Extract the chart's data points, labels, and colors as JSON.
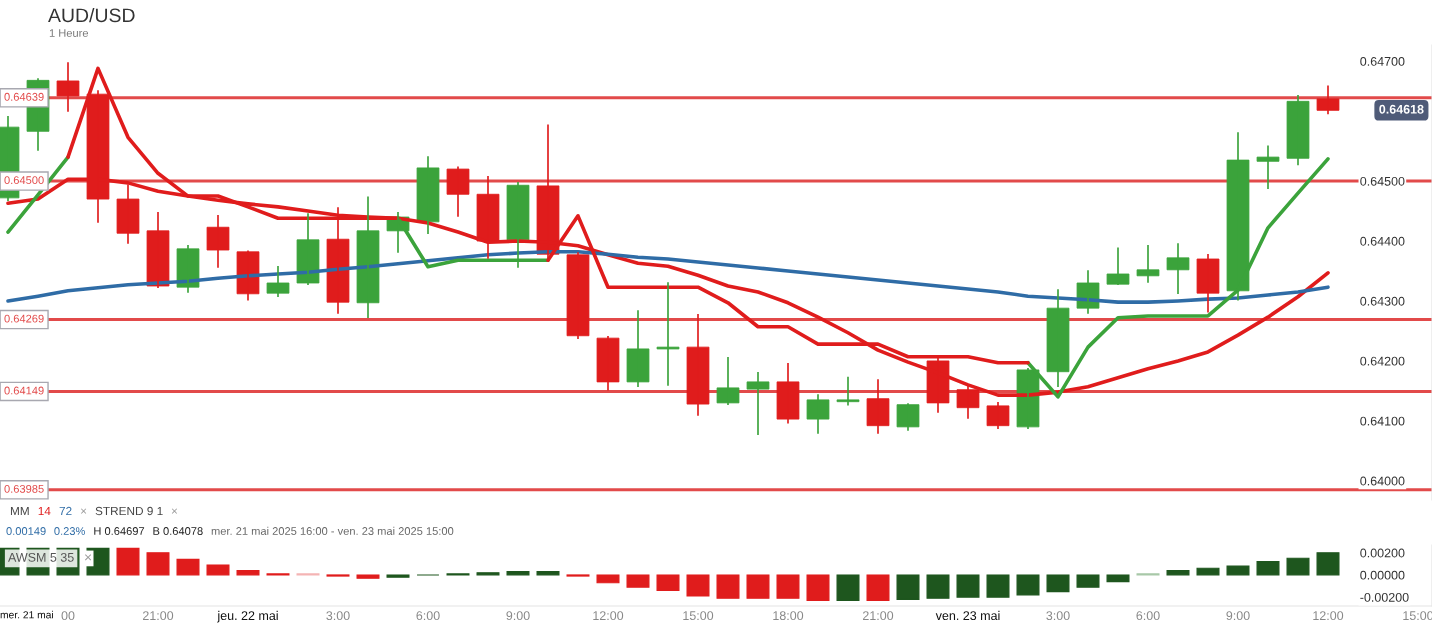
{
  "chart_data": [
    {
      "type": "candlestick",
      "title": "AUD/USD",
      "subtitle": "1 Heure",
      "x": [
        "2025-05-21T16:00",
        "2025-05-21T17:00",
        "2025-05-21T18:00",
        "2025-05-21T19:00",
        "2025-05-21T20:00",
        "2025-05-21T21:00",
        "2025-05-21T22:00",
        "2025-05-21T23:00",
        "2025-05-22T00:00",
        "2025-05-22T01:00",
        "2025-05-22T02:00",
        "2025-05-22T03:00",
        "2025-05-22T04:00",
        "2025-05-22T05:00",
        "2025-05-22T06:00",
        "2025-05-22T07:00",
        "2025-05-22T08:00",
        "2025-05-22T09:00",
        "2025-05-22T10:00",
        "2025-05-22T11:00",
        "2025-05-22T12:00",
        "2025-05-22T13:00",
        "2025-05-22T14:00",
        "2025-05-22T15:00",
        "2025-05-22T16:00",
        "2025-05-22T17:00",
        "2025-05-22T18:00",
        "2025-05-22T19:00",
        "2025-05-22T20:00",
        "2025-05-22T21:00",
        "2025-05-22T22:00",
        "2025-05-22T23:00",
        "2025-05-23T00:00",
        "2025-05-23T01:00",
        "2025-05-23T02:00",
        "2025-05-23T03:00",
        "2025-05-23T04:00",
        "2025-05-23T05:00",
        "2025-05-23T06:00",
        "2025-05-23T07:00",
        "2025-05-23T08:00",
        "2025-05-23T09:00",
        "2025-05-23T10:00",
        "2025-05-23T11:00",
        "2025-05-23T12:00"
      ],
      "ohlc": [
        [
          0.64472,
          0.64607,
          0.64468,
          0.6459
        ],
        [
          0.64583,
          0.6467,
          0.64552,
          0.64668
        ],
        [
          0.64667,
          0.64697,
          0.64617,
          0.64642
        ],
        [
          0.64645,
          0.6465,
          0.64432,
          0.6447
        ],
        [
          0.6447,
          0.64493,
          0.64397,
          0.64413
        ],
        [
          0.64417,
          0.64447,
          0.64323,
          0.64325
        ],
        [
          0.64323,
          0.64392,
          0.64315,
          0.64387
        ],
        [
          0.64423,
          0.64442,
          0.64357,
          0.64385
        ],
        [
          0.64382,
          0.64383,
          0.64302,
          0.64312
        ],
        [
          0.64313,
          0.64357,
          0.64308,
          0.6433
        ],
        [
          0.6433,
          0.64445,
          0.64328,
          0.64402
        ],
        [
          0.64403,
          0.64455,
          0.6428,
          0.64298
        ],
        [
          0.64297,
          0.64473,
          0.64273,
          0.64417
        ],
        [
          0.64417,
          0.64447,
          0.64382,
          0.6444
        ],
        [
          0.64432,
          0.6454,
          0.64413,
          0.64522
        ],
        [
          0.6452,
          0.64523,
          0.64442,
          0.64478
        ],
        [
          0.64478,
          0.64507,
          0.64372,
          0.644
        ],
        [
          0.64402,
          0.64497,
          0.64357,
          0.64493
        ],
        [
          0.64492,
          0.64593,
          0.64372,
          0.64378
        ],
        [
          0.64377,
          0.6438,
          0.64238,
          0.64242
        ],
        [
          0.64238,
          0.6424,
          0.64152,
          0.64165
        ],
        [
          0.64165,
          0.64283,
          0.64158,
          0.6422
        ],
        [
          0.6422,
          0.6433,
          0.6416,
          0.64223
        ],
        [
          0.64223,
          0.64277,
          0.6411,
          0.64128
        ],
        [
          0.6413,
          0.64205,
          0.64128,
          0.64155
        ],
        [
          0.64153,
          0.6418,
          0.64078,
          0.64165
        ],
        [
          0.64165,
          0.64195,
          0.64097,
          0.64103
        ],
        [
          0.64103,
          0.64143,
          0.6408,
          0.64135
        ],
        [
          0.64132,
          0.64172,
          0.64127,
          0.64135
        ],
        [
          0.64137,
          0.64168,
          0.6408,
          0.64092
        ],
        [
          0.6409,
          0.64128,
          0.64085,
          0.64127
        ],
        [
          0.642,
          0.64205,
          0.64115,
          0.6413
        ],
        [
          0.64152,
          0.6416,
          0.64105,
          0.64122
        ],
        [
          0.64125,
          0.6413,
          0.64088,
          0.64092
        ],
        [
          0.6409,
          0.64187,
          0.64088,
          0.64185
        ],
        [
          0.64182,
          0.64318,
          0.64158,
          0.64288
        ],
        [
          0.64288,
          0.6435,
          0.6428,
          0.6433
        ],
        [
          0.64328,
          0.64388,
          0.64328,
          0.64345
        ],
        [
          0.64342,
          0.64392,
          0.64332,
          0.64352
        ],
        [
          0.64352,
          0.64395,
          0.64313,
          0.64372
        ],
        [
          0.6437,
          0.64377,
          0.64282,
          0.64313
        ],
        [
          0.64317,
          0.6458,
          0.64302,
          0.64535
        ],
        [
          0.64533,
          0.64558,
          0.64488,
          0.6454
        ],
        [
          0.64538,
          0.64642,
          0.64528,
          0.64633
        ],
        [
          0.64637,
          0.64658,
          0.64613,
          0.64618
        ]
      ],
      "colors": [
        "#3ba33b",
        "#3ba33b",
        "#e01c1c",
        "#e01c1c",
        "#e01c1c",
        "#e01c1c",
        "#3ba33b",
        "#e01c1c",
        "#e01c1c",
        "#3ba33b",
        "#3ba33b",
        "#e01c1c",
        "#3ba33b",
        "#3ba33b",
        "#3ba33b",
        "#e01c1c",
        "#e01c1c",
        "#3ba33b",
        "#e01c1c",
        "#e01c1c",
        "#e01c1c",
        "#3ba33b",
        "#3ba33b",
        "#e01c1c",
        "#3ba33b",
        "#3ba33b",
        "#e01c1c",
        "#3ba33b",
        "#3ba33b",
        "#e01c1c",
        "#3ba33b",
        "#e01c1c",
        "#e01c1c",
        "#e01c1c",
        "#3ba33b",
        "#3ba33b",
        "#3ba33b",
        "#3ba33b",
        "#3ba33b",
        "#3ba33b",
        "#e01c1c",
        "#3ba33b",
        "#3ba33b",
        "#3ba33b",
        "#e01c1c"
      ],
      "series": [
        {
          "type": "line",
          "name": "14",
          "color": "#e01c1c",
          "values": [
            0.64463,
            0.6447,
            0.64503,
            0.64503,
            0.64497,
            0.64483,
            0.64475,
            0.64468,
            0.64462,
            0.64457,
            0.6445,
            0.64443,
            0.6444,
            0.64438,
            0.6443,
            0.64415,
            0.64398,
            0.644,
            0.64398,
            0.64392,
            0.64377,
            0.64363,
            0.64358,
            0.64343,
            0.64325,
            0.64315,
            0.64297,
            0.64273,
            0.64247,
            0.64218,
            0.64198,
            0.6418,
            0.6416,
            0.64143,
            0.64143,
            0.64148,
            0.64157,
            0.64172,
            0.64187,
            0.642,
            0.64215,
            0.64243,
            0.64273,
            0.64307,
            0.64347
          ]
        },
        {
          "type": "line",
          "name": "72",
          "color": "#2f6ca6",
          "values": [
            0.643,
            0.64308,
            0.64317,
            0.64322,
            0.64327,
            0.6433,
            0.64333,
            0.64338,
            0.64342,
            0.64345,
            0.64348,
            0.64353,
            0.64357,
            0.64362,
            0.64367,
            0.64372,
            0.64377,
            0.6438,
            0.64382,
            0.64382,
            0.64378,
            0.64373,
            0.6437,
            0.64365,
            0.6436,
            0.64355,
            0.6435,
            0.64345,
            0.6434,
            0.64335,
            0.6433,
            0.64325,
            0.6432,
            0.64315,
            0.64308,
            0.64305,
            0.64302,
            0.64298,
            0.64298,
            0.643,
            0.64303,
            0.64305,
            0.6431,
            0.64315,
            0.64323
          ]
        },
        {
          "type": "line",
          "color": "#3ba33b",
          "values": [
            0.64415,
            0.64477,
            0.6454,
            null,
            null,
            null,
            null,
            null,
            null,
            null,
            null,
            null,
            null,
            0.64438,
            0.64357,
            0.64368,
            0.64368,
            0.64368,
            0.64368,
            null,
            null,
            null,
            null,
            null,
            null,
            null,
            null,
            null,
            null,
            null,
            null,
            null,
            null,
            null,
            0.64197,
            0.6414,
            0.64223,
            0.64272,
            0.64275,
            0.64275,
            0.64275,
            0.64318,
            0.64422,
            0.6448,
            0.64537
          ]
        },
        {
          "type": "line",
          "color": "#e01c1c",
          "values": [
            null,
            null,
            0.6454,
            0.64688,
            0.64573,
            0.64513,
            0.64475,
            0.64475,
            0.64457,
            0.64438,
            0.64438,
            0.64438,
            0.64438,
            0.64438,
            null,
            null,
            null,
            null,
            0.64368,
            0.64442,
            0.64323,
            0.64323,
            0.64323,
            0.64323,
            0.64297,
            0.64257,
            0.64257,
            0.64228,
            0.64228,
            0.64228,
            0.64207,
            0.64207,
            0.64207,
            0.64197,
            0.64197,
            null,
            null,
            null,
            null,
            null,
            null,
            null,
            null,
            null,
            null
          ]
        }
      ],
      "ref_lines": [
        {
          "axis": "y",
          "value": 0.64639,
          "label": "0.64639",
          "color": "#e24a4a"
        },
        {
          "axis": "y",
          "value": 0.645,
          "label": "0.64500",
          "color": "#e24a4a"
        },
        {
          "axis": "y",
          "value": 0.64269,
          "label": "0.64269",
          "color": "#e24a4a"
        },
        {
          "axis": "y",
          "value": 0.64149,
          "label": "0.64149",
          "color": "#e24a4a"
        },
        {
          "axis": "y",
          "value": 0.63985,
          "label": "0.63985",
          "color": "#e24a4a"
        }
      ],
      "annotations": [
        "MM",
        "×",
        "STREND 9 1",
        "×",
        "0.00149",
        "0.23%",
        "H 0.64697",
        "B 0.64078",
        "mer. 21 mai 2025 16:00 - ven. 23 mai 2025 15:00",
        "0.64618"
      ],
      "xlim": [
        "2025-05-21T15:44",
        "2025-05-23T15:28"
      ],
      "ylim": [
        0.63968,
        0.64727
      ],
      "yticks": [
        {
          "value": 0.64,
          "label": "0.64000"
        },
        {
          "value": 0.641,
          "label": "0.64100"
        },
        {
          "value": 0.642,
          "label": "0.64200"
        },
        {
          "value": 0.643,
          "label": "0.64300"
        },
        {
          "value": 0.644,
          "label": "0.64400"
        },
        {
          "value": 0.645,
          "label": "0.64500"
        },
        {
          "value": 0.647,
          "label": "0.64700"
        }
      ],
      "tick_labels": "y",
      "line_style": "solid",
      "legend": "bottom left"
    },
    {
      "type": "bar",
      "title": "AWSM 5 35",
      "annotations": [
        "×"
      ],
      "x": [
        "2025-05-21T16:00",
        "2025-05-21T17:00",
        "2025-05-21T18:00",
        "2025-05-21T19:00",
        "2025-05-21T20:00",
        "2025-05-21T21:00",
        "2025-05-21T22:00",
        "2025-05-21T23:00",
        "2025-05-22T00:00",
        "2025-05-22T01:00",
        "2025-05-22T02:00",
        "2025-05-22T03:00",
        "2025-05-22T04:00",
        "2025-05-22T05:00",
        "2025-05-22T06:00",
        "2025-05-22T07:00",
        "2025-05-22T08:00",
        "2025-05-22T09:00",
        "2025-05-22T10:00",
        "2025-05-22T11:00",
        "2025-05-22T12:00",
        "2025-05-22T13:00",
        "2025-05-22T14:00",
        "2025-05-22T15:00",
        "2025-05-22T16:00",
        "2025-05-22T17:00",
        "2025-05-22T18:00",
        "2025-05-22T19:00",
        "2025-05-22T20:00",
        "2025-05-22T21:00",
        "2025-05-22T22:00",
        "2025-05-22T23:00",
        "2025-05-23T00:00",
        "2025-05-23T01:00",
        "2025-05-23T02:00",
        "2025-05-23T03:00",
        "2025-05-23T04:00",
        "2025-05-23T05:00",
        "2025-05-23T06:00",
        "2025-05-23T07:00",
        "2025-05-23T08:00",
        "2025-05-23T09:00",
        "2025-05-23T10:00",
        "2025-05-23T11:00",
        "2025-05-23T12:00"
      ],
      "values": [
        0.0024,
        0.0024,
        0.0024,
        0.0024,
        0.0024,
        0.002,
        0.0014,
        0.0009,
        0.0004,
        0.0001,
        0.0001,
        -0.0001,
        -0.0003,
        -0.0002,
        0,
        0.0001,
        0.0002,
        0.0003,
        0.0003,
        -0.0001,
        -0.0007,
        -0.0011,
        -0.0014,
        -0.0019,
        -0.0021,
        -0.0021,
        -0.0021,
        -0.0023,
        -0.0023,
        -0.0023,
        -0.0022,
        -0.0021,
        -0.002,
        -0.002,
        -0.0018,
        -0.0015,
        -0.0011,
        -0.0006,
        0.0001,
        0.0004,
        0.0006,
        0.0008,
        0.0012,
        0.0015,
        0.002
      ],
      "colors": [
        "#1e561e",
        "#1e561e",
        "#1e561e",
        "#1e561e",
        "#e01c1c",
        "#e01c1c",
        "#e01c1c",
        "#e01c1c",
        "#e01c1c",
        "#e01c1c",
        "#f4b4b4",
        "#e01c1c",
        "#e01c1c",
        "#1e561e",
        "#1e561e",
        "#1e561e",
        "#1e561e",
        "#1e561e",
        "#1e561e",
        "#e01c1c",
        "#e01c1c",
        "#e01c1c",
        "#e01c1c",
        "#e01c1c",
        "#e01c1c",
        "#e01c1c",
        "#e01c1c",
        "#e01c1c",
        "#1e561e",
        "#e01c1c",
        "#1e561e",
        "#1e561e",
        "#1e561e",
        "#1e561e",
        "#1e561e",
        "#1e561e",
        "#1e561e",
        "#1e561e",
        "#a8c8a8",
        "#1e561e",
        "#1e561e",
        "#1e561e",
        "#1e561e",
        "#1e561e",
        "#1e561e"
      ],
      "xlim": [
        "2025-05-21T15:44",
        "2025-05-23T15:28"
      ],
      "ylim": [
        -0.0028,
        0.0027
      ],
      "xticks": [
        {
          "value": "2025-05-21T15:44",
          "label": "mer. 21 mai"
        },
        {
          "value": "2025-05-21T18:00",
          "label": "00"
        },
        {
          "value": "2025-05-21T21:00",
          "label": "21:00"
        },
        {
          "value": "2025-05-22T00:00",
          "label": "jeu. 22 mai"
        },
        {
          "value": "2025-05-22T03:00",
          "label": "3:00"
        },
        {
          "value": "2025-05-22T06:00",
          "label": "6:00"
        },
        {
          "value": "2025-05-22T09:00",
          "label": "9:00"
        },
        {
          "value": "2025-05-22T12:00",
          "label": "12:00"
        },
        {
          "value": "2025-05-22T15:00",
          "label": "15:00"
        },
        {
          "value": "2025-05-22T18:00",
          "label": "18:00"
        },
        {
          "value": "2025-05-22T21:00",
          "label": "21:00"
        },
        {
          "value": "2025-05-23T00:00",
          "label": "ven. 23 mai"
        },
        {
          "value": "2025-05-23T03:00",
          "label": "3:00"
        },
        {
          "value": "2025-05-23T06:00",
          "label": "6:00"
        },
        {
          "value": "2025-05-23T09:00",
          "label": "9:00"
        },
        {
          "value": "2025-05-23T12:00",
          "label": "12:00"
        },
        {
          "value": "2025-05-23T15:00",
          "label": "15:00"
        }
      ],
      "yticks": [
        {
          "value": -0.002,
          "label": "-0.00200"
        },
        {
          "value": 0,
          "label": "0.00000"
        },
        {
          "value": 0.002,
          "label": "0.00200"
        }
      ]
    }
  ]
}
